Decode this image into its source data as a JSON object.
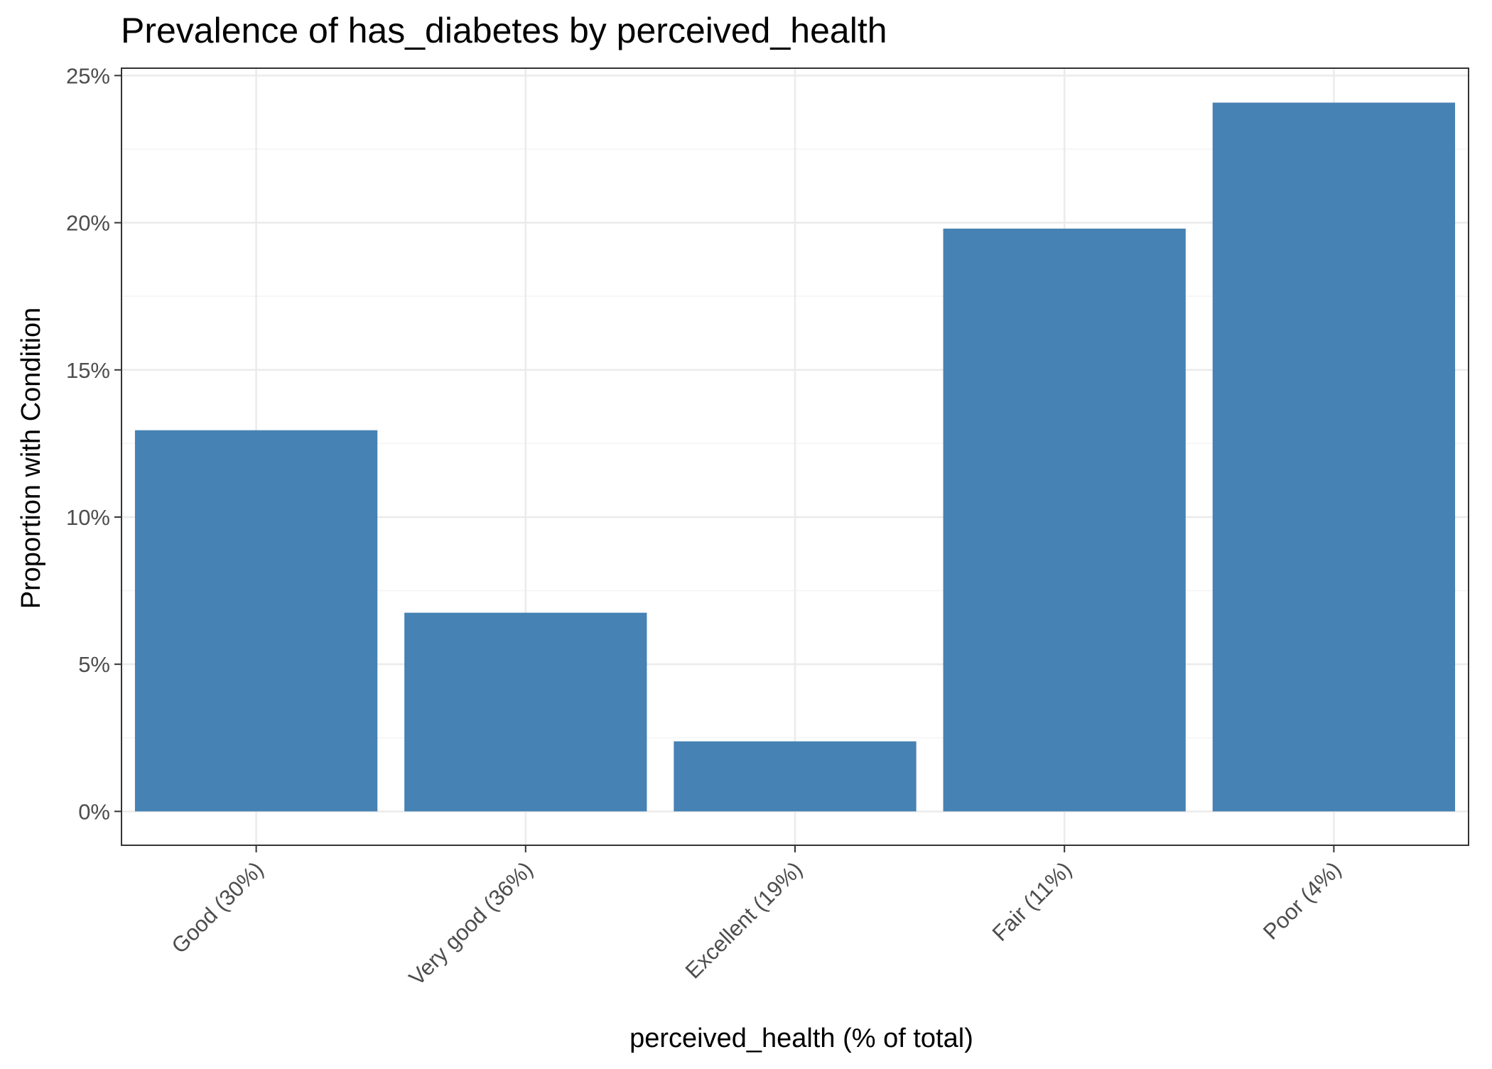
{
  "chart_data": {
    "type": "bar",
    "title": "Prevalence of has_diabetes by perceived_health",
    "xlabel": "perceived_health (% of total)",
    "ylabel": "Proportion with Condition",
    "categories": [
      "Good (30%)",
      "Very good (36%)",
      "Excellent (19%)",
      "Fair (11%)",
      "Poor (4%)"
    ],
    "values": [
      0.1295,
      0.0675,
      0.0238,
      0.198,
      0.2408
    ],
    "ylim": [
      -0.0115,
      0.2525
    ],
    "yticks": [
      0,
      0.05,
      0.1,
      0.15,
      0.2,
      0.25
    ],
    "ytick_labels": [
      "0%",
      "5%",
      "10%",
      "15%",
      "20%",
      "25%"
    ],
    "grid": true,
    "legend": "none"
  },
  "colors": {
    "bar": "#4682b4",
    "grid_major": "#ebebeb",
    "grid_minor": "#f4f4f4",
    "panel_border": "#333333",
    "axis_text": "#4d4d4d",
    "title_text": "#000000"
  }
}
